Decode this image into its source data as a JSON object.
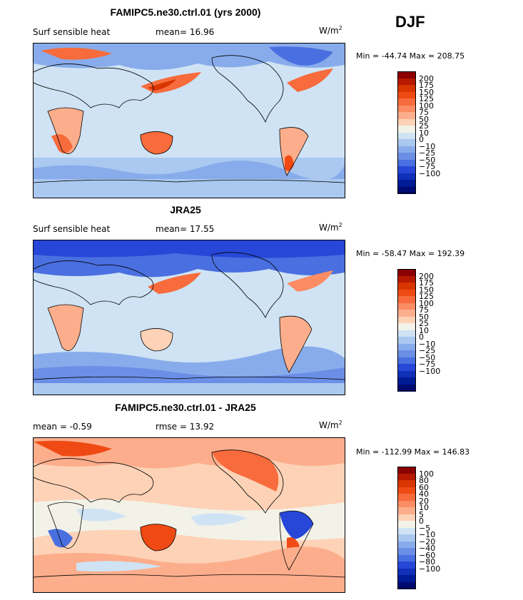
{
  "season": "DJF",
  "panels": [
    {
      "title": "FAMIPC5.ne30.ctrl.01 (yrs 2000)",
      "left_label": "Surf sensible heat",
      "mid_label": "mean=  16.96",
      "units": "W/m",
      "units_sup": "2",
      "minmax": "Min = -44.74 Max = 208.75",
      "colorbar": {
        "colors": [
          "#8b0000",
          "#b51a00",
          "#d93500",
          "#f04a14",
          "#f76b3c",
          "#fb8c64",
          "#fcae8c",
          "#fdd2b6",
          "#f2f2e8",
          "#cfe3f5",
          "#aac8f0",
          "#88aceb",
          "#6b8fe6",
          "#4a6fe0",
          "#2747d8",
          "#1030b8",
          "#001b96",
          "#000a73"
        ],
        "ticks": [
          "200",
          "175",
          "150",
          "125",
          "100",
          "75",
          "50",
          "25",
          "10",
          "0",
          "−10",
          "−25",
          "−50",
          "−75",
          "−100"
        ]
      }
    },
    {
      "title": "JRA25",
      "left_label": "Surf sensible heat",
      "mid_label": "mean=  17.55",
      "units": "W/m",
      "units_sup": "2",
      "minmax": "Min = -58.47 Max = 192.39",
      "colorbar": {
        "colors": [
          "#8b0000",
          "#b51a00",
          "#d93500",
          "#f04a14",
          "#f76b3c",
          "#fb8c64",
          "#fcae8c",
          "#fdd2b6",
          "#f2f2e8",
          "#cfe3f5",
          "#aac8f0",
          "#88aceb",
          "#6b8fe6",
          "#4a6fe0",
          "#2747d8",
          "#1030b8",
          "#001b96",
          "#000a73"
        ],
        "ticks": [
          "200",
          "175",
          "150",
          "125",
          "100",
          "75",
          "50",
          "25",
          "10",
          "0",
          "−10",
          "−25",
          "−50",
          "−75",
          "−100"
        ]
      }
    },
    {
      "title": "FAMIPC5.ne30.ctrl.01 - JRA25",
      "left_label": "mean =  -0.59",
      "mid_label": "rmse =  13.92",
      "units": "W/m",
      "units_sup": "2",
      "minmax": "Min = -112.99 Max = 146.83",
      "colorbar": {
        "colors": [
          "#8b0000",
          "#b51a00",
          "#d93500",
          "#f04a14",
          "#f76b3c",
          "#fb8c64",
          "#fcae8c",
          "#fdd2b6",
          "#f2f2e8",
          "#cfe3f5",
          "#aac8f0",
          "#88aceb",
          "#6b8fe6",
          "#4a6fe0",
          "#2747d8",
          "#1030b8",
          "#001b96",
          "#000a73"
        ],
        "ticks": [
          "100",
          "80",
          "60",
          "40",
          "20",
          "10",
          "5",
          "0",
          "−5",
          "−10",
          "−20",
          "−40",
          "−60",
          "−80",
          "−100"
        ]
      }
    }
  ]
}
